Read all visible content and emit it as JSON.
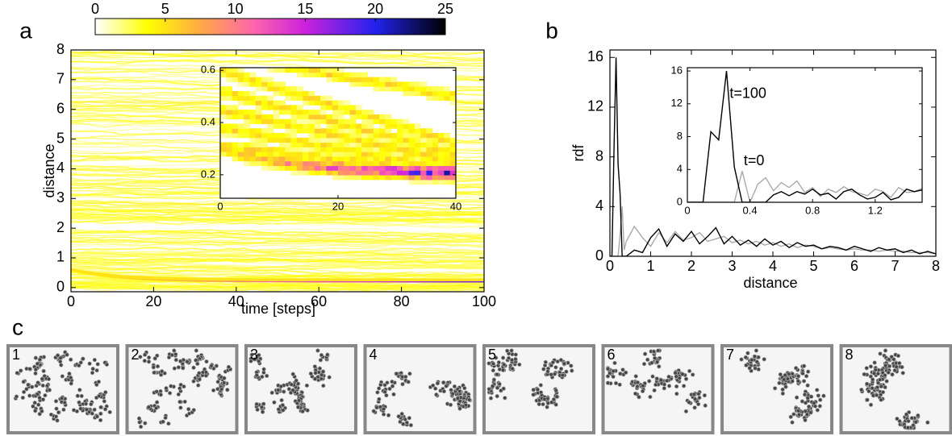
{
  "panel_labels": [
    "a",
    "b",
    "c"
  ],
  "chart_data": [
    {
      "type": "heatmap",
      "xlabel": "time [steps]",
      "ylabel": "distance",
      "xlim": [
        0,
        100
      ],
      "xticks": [
        0,
        20,
        40,
        60,
        80,
        100
      ],
      "ylim": [
        -0.14,
        8
      ],
      "yticks": [
        0,
        1,
        2,
        3,
        4,
        5,
        6,
        7,
        8
      ],
      "colorbar": {
        "lim": [
          0,
          25
        ],
        "ticks": [
          0,
          5,
          10,
          15,
          20,
          25
        ]
      }
    },
    {
      "type": "heatmap",
      "xlim": [
        0,
        40
      ],
      "xticks": [
        0,
        20,
        40
      ],
      "ylim": [
        0.11,
        0.61
      ],
      "yticks": [
        0.2,
        0.4,
        0.6
      ]
    },
    {
      "type": "line",
      "xlabel": "distance",
      "ylabel": "rdf",
      "xlim": [
        0,
        8
      ],
      "xticks": [
        0,
        1,
        2,
        3,
        4,
        5,
        6,
        7,
        8
      ],
      "ylim": [
        0,
        16.6
      ],
      "yticks": [
        0,
        4,
        8,
        12,
        16
      ],
      "x": [
        0,
        0.05,
        0.1,
        0.15,
        0.2,
        0.25,
        0.3,
        0.35,
        0.4,
        0.6,
        0.8,
        1.0,
        1.2,
        1.4,
        1.6,
        1.8,
        2.0,
        2.2,
        2.4,
        2.6,
        2.8,
        3.0,
        3.2,
        3.4,
        3.6,
        3.8,
        4.0,
        4.2,
        4.4,
        4.6,
        4.8,
        5.0,
        5.2,
        5.4,
        5.6,
        5.8,
        6.0,
        6.2,
        6.4,
        6.6,
        6.8,
        7.0,
        7.2,
        7.4,
        7.6,
        7.8,
        8.0
      ],
      "series": [
        {
          "name": "t=0",
          "color": "#aaaaaa",
          "values": [
            0,
            0,
            0,
            0,
            0,
            1.8,
            4.0,
            0.5,
            1.2,
            2.4,
            1.5,
            0.8,
            1.9,
            1.1,
            2.0,
            1.3,
            1.5,
            1.9,
            1.2,
            1.4,
            1.6,
            1.1,
            1.3,
            1.0,
            1.2,
            0.9,
            1.1,
            0.8,
            1.0,
            0.7,
            0.9,
            0.8,
            0.6,
            0.7,
            0.6,
            0.5,
            0.6,
            0.5,
            0.5,
            0.4,
            0.5,
            0.4,
            0.4,
            0.3,
            0.3,
            0.3,
            0.2
          ]
        },
        {
          "name": "t=100",
          "color": "#000000",
          "values": [
            0,
            0,
            8.6,
            16,
            7.4,
            5,
            0,
            0,
            0,
            0.5,
            0.3,
            1.5,
            2.2,
            0.8,
            1.8,
            1.2,
            2.0,
            1.0,
            1.6,
            2.3,
            1.0,
            1.6,
            0.9,
            1.3,
            0.8,
            1.4,
            0.9,
            1.2,
            0.7,
            1.1,
            0.8,
            0.9,
            0.6,
            0.8,
            0.7,
            0.5,
            0.8,
            0.6,
            0.4,
            0.7,
            0.5,
            0.6,
            0.3,
            0.5,
            0.2,
            0.4,
            0.2
          ]
        }
      ]
    },
    {
      "type": "line",
      "xlim": [
        0,
        1.5
      ],
      "xticks": [
        0,
        0.4,
        0.8,
        1.2
      ],
      "ylim": [
        0,
        16.4
      ],
      "yticks": [
        0,
        4,
        8,
        12,
        16
      ],
      "x": [
        0,
        0.05,
        0.1,
        0.15,
        0.2,
        0.25,
        0.3,
        0.35,
        0.4,
        0.45,
        0.5,
        0.55,
        0.6,
        0.65,
        0.7,
        0.75,
        0.8,
        0.85,
        0.9,
        0.95,
        1.0,
        1.05,
        1.1,
        1.15,
        1.2,
        1.25,
        1.3,
        1.35,
        1.4,
        1.45,
        1.5
      ],
      "series": [
        {
          "name": "t=0",
          "color": "#aaaaaa",
          "values": [
            0,
            0,
            0,
            0,
            0,
            0,
            0,
            3.8,
            0,
            2.2,
            3.0,
            1.4,
            2.4,
            1.8,
            2.6,
            1.2,
            1.8,
            0.7,
            1.6,
            1.2,
            1.9,
            1.3,
            1.1,
            0.8,
            1.6,
            1.3,
            0.6,
            1.8,
            1.2,
            1.3,
            1.7
          ]
        },
        {
          "name": "t=100",
          "color": "#000000",
          "values": [
            0,
            0,
            0,
            8.6,
            7.6,
            16,
            4.3,
            0,
            0,
            0,
            0,
            0.9,
            1.3,
            0.8,
            1.3,
            1.0,
            1.6,
            0.9,
            1.1,
            0.4,
            1.3,
            1.6,
            0.9,
            0.4,
            0.6,
            1.2,
            0.3,
            0.6,
            1.6,
            1.3,
            1.5
          ]
        }
      ],
      "annotations": [
        {
          "text": "t=100",
          "x": 0.27,
          "y": 13.2,
          "color": "#000000"
        },
        {
          "text": "t=0",
          "x": 0.36,
          "y": 5.0,
          "color": "#aaaaaa"
        }
      ]
    }
  ],
  "snapshots": {
    "labels": [
      "1",
      "2",
      "3",
      "4",
      "5",
      "6",
      "7",
      "8"
    ]
  }
}
